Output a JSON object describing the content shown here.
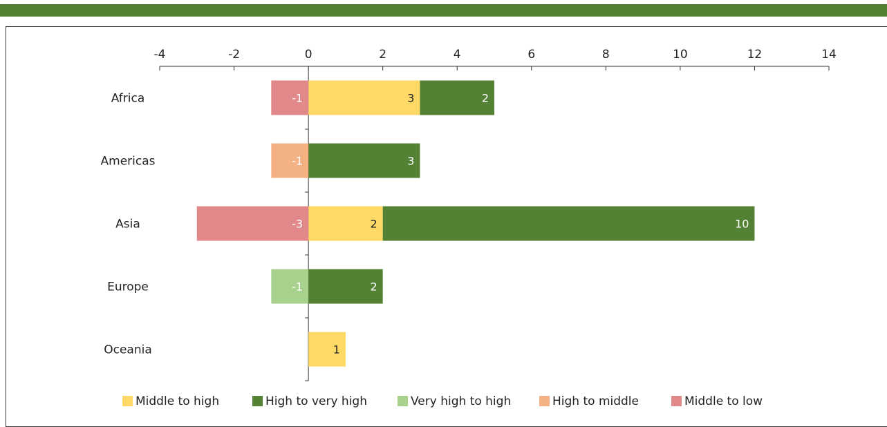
{
  "colors": {
    "top_bar": "#548235",
    "axis": "#333333"
  },
  "chart_data": {
    "type": "bar",
    "orientation": "horizontal",
    "stacked": true,
    "title": "",
    "xlabel": "",
    "ylabel": "",
    "xlim": [
      -4,
      14
    ],
    "x_ticks": [
      "-4",
      "-2",
      "0",
      "2",
      "4",
      "6",
      "8",
      "10",
      "12",
      "14"
    ],
    "grid": false,
    "legend_position": "bottom",
    "categories": [
      "Africa",
      "Americas",
      "Asia",
      "Europe",
      "Oceania"
    ],
    "series": [
      {
        "name": "Middle to high",
        "color": "#FFD966",
        "label_color": "#222222",
        "values": [
          3,
          0,
          2,
          0,
          1
        ]
      },
      {
        "name": "High to very high",
        "color": "#548235",
        "label_color": "#ffffff",
        "values": [
          2,
          3,
          10,
          2,
          0
        ]
      },
      {
        "name": "Very high to high",
        "color": "#A9D18E",
        "label_color": "#ffffff",
        "values": [
          0,
          0,
          0,
          -1,
          0
        ]
      },
      {
        "name": "High to middle",
        "color": "#F4B183",
        "label_color": "#ffffff",
        "values": [
          0,
          -1,
          0,
          0,
          0
        ]
      },
      {
        "name": "Middle to low",
        "color": "#E0888A",
        "label_color": "#ffffff",
        "values": [
          -1,
          0,
          -3,
          0,
          0
        ]
      }
    ]
  }
}
